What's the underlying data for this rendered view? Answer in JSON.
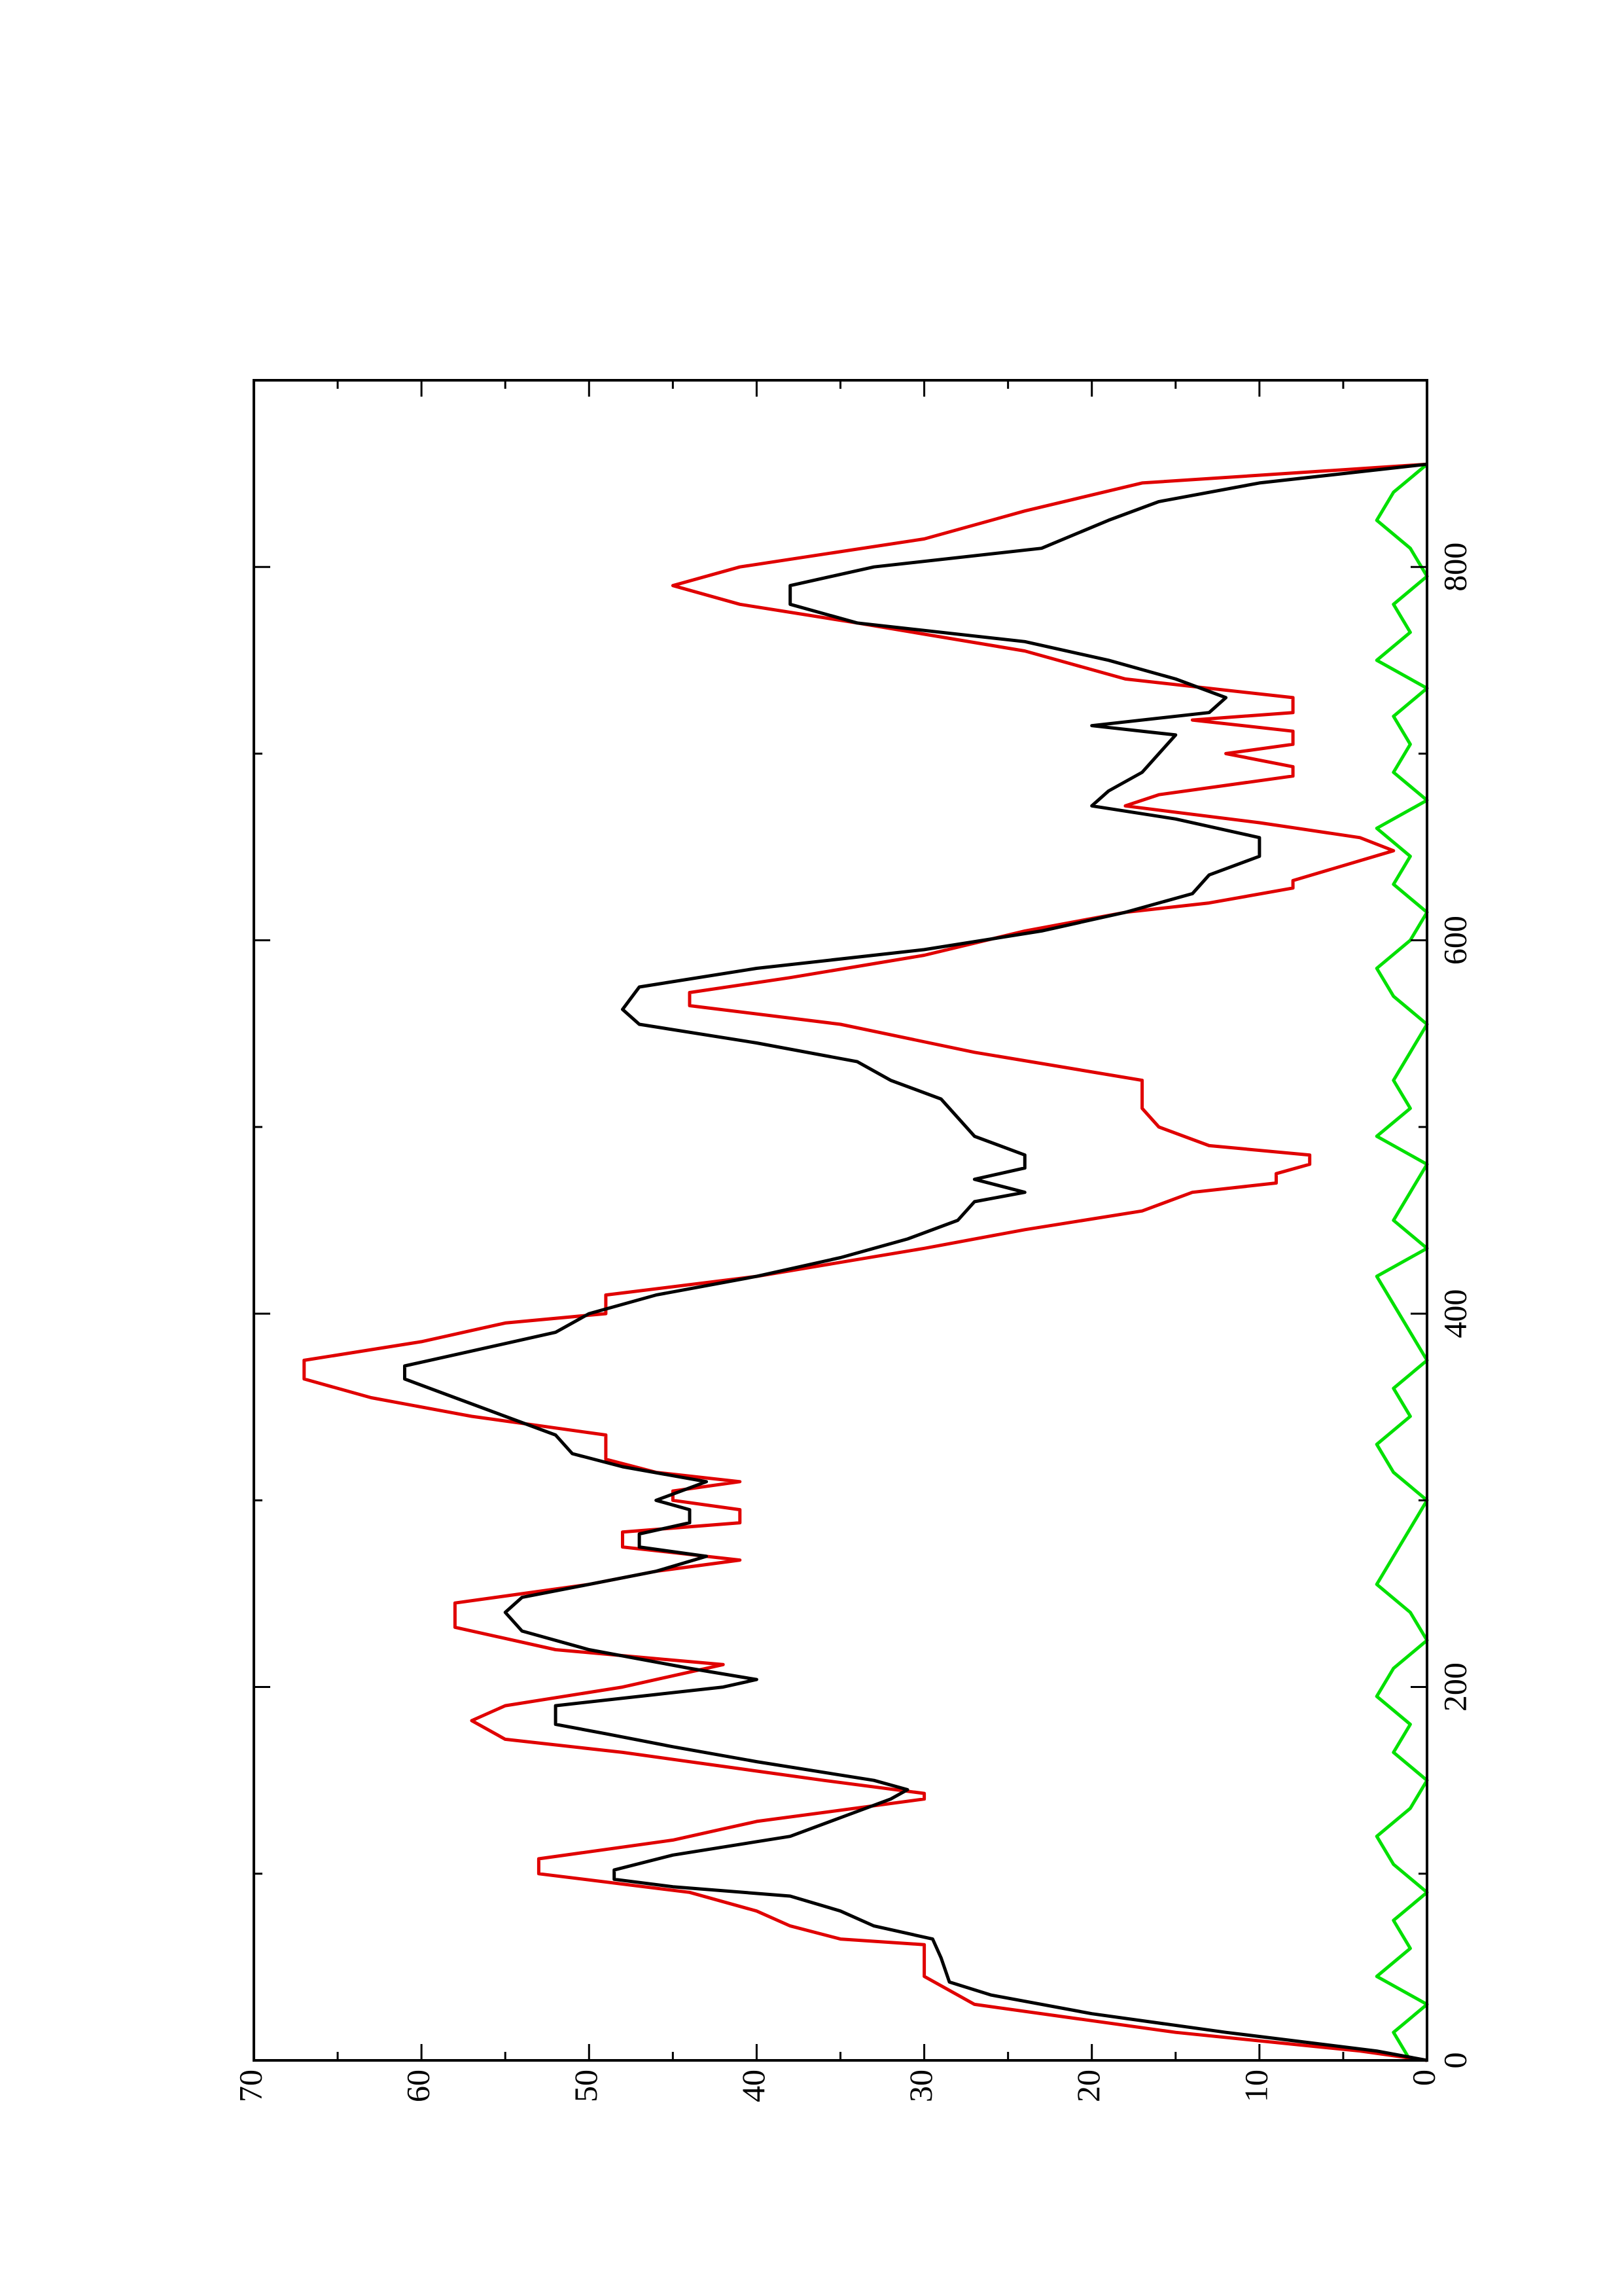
{
  "chart_data": {
    "type": "line",
    "xlim": [
      0,
      900
    ],
    "ylim": [
      0,
      70
    ],
    "xticks": [
      0,
      200,
      400,
      600,
      800
    ],
    "xminor_ticks": [
      100,
      300,
      500,
      700
    ],
    "yticks": [
      0,
      10,
      20,
      30,
      40,
      50,
      60,
      70
    ],
    "yminor_ticks": [
      5,
      15,
      25,
      35,
      45,
      55,
      65
    ],
    "rotated": true,
    "series": [
      {
        "color": "#00e000",
        "x": [
          0,
          15,
          30,
          45,
          60,
          75,
          90,
          105,
          120,
          135,
          150,
          165,
          180,
          195,
          210,
          225,
          240,
          255,
          270,
          285,
          300,
          315,
          330,
          345,
          360,
          375,
          390,
          405,
          420,
          435,
          450,
          465,
          480,
          495,
          510,
          525,
          540,
          555,
          570,
          585,
          600,
          615,
          630,
          645,
          660,
          675,
          690,
          705,
          720,
          735,
          750,
          765,
          780,
          795,
          810,
          825,
          840,
          855
        ],
        "values": [
          1,
          2,
          0,
          3,
          1,
          2,
          0,
          2,
          3,
          1,
          0,
          2,
          1,
          3,
          2,
          0,
          1,
          3,
          2,
          1,
          0,
          2,
          3,
          1,
          2,
          0,
          1,
          2,
          3,
          0,
          2,
          1,
          0,
          3,
          1,
          2,
          1,
          0,
          2,
          3,
          1,
          0,
          2,
          1,
          3,
          0,
          2,
          1,
          2,
          0,
          3,
          1,
          2,
          0,
          1,
          3,
          2,
          0
        ]
      },
      {
        "color": "#e00000",
        "x": [
          0,
          5,
          15,
          30,
          45,
          62,
          65,
          72,
          80,
          90,
          100,
          108,
          118,
          128,
          140,
          143,
          150,
          165,
          172,
          182,
          190,
          200,
          212,
          220,
          232,
          245,
          255,
          262,
          268,
          275,
          283,
          288,
          295,
          300,
          305,
          310,
          315,
          322,
          335,
          340,
          345,
          355,
          365,
          375,
          385,
          395,
          400,
          410,
          420,
          435,
          445,
          455,
          465,
          470,
          475,
          480,
          485,
          490,
          500,
          510,
          525,
          540,
          555,
          565,
          572,
          580,
          592,
          605,
          615,
          620,
          628,
          632,
          640,
          648,
          655,
          663,
          672,
          678,
          688,
          693,
          700,
          705,
          712,
          718,
          722,
          730,
          740,
          755,
          770,
          780,
          790,
          800,
          815,
          830,
          845,
          855
        ],
        "values": [
          0,
          4,
          15,
          27,
          30,
          30,
          35,
          38,
          40,
          44,
          53,
          53,
          45,
          40,
          30,
          30,
          36,
          48,
          55,
          57,
          55,
          48,
          42,
          52,
          58,
          58,
          50,
          46,
          41,
          48,
          48,
          41,
          41,
          45,
          45,
          41,
          46,
          49,
          49,
          53,
          57,
          63,
          67,
          67,
          60,
          55,
          49,
          49,
          40,
          30,
          24,
          17,
          14,
          9,
          9,
          7,
          7,
          13,
          16,
          17,
          17,
          27,
          35,
          44,
          44,
          38,
          30,
          24,
          18,
          13,
          8,
          8,
          5,
          2,
          4,
          10,
          18,
          16,
          8,
          8,
          12,
          8,
          8,
          14,
          8,
          8,
          18,
          24,
          34,
          41,
          45,
          41,
          30,
          24,
          17,
          0
        ]
      },
      {
        "color": "#000000",
        "x": [
          0,
          5,
          15,
          25,
          35,
          42,
          55,
          65,
          72,
          80,
          88,
          93,
          97,
          102,
          110,
          120,
          130,
          140,
          145,
          150,
          160,
          168,
          175,
          180,
          190,
          196,
          200,
          204,
          210,
          220,
          230,
          240,
          248,
          255,
          262,
          270,
          275,
          282,
          288,
          295,
          300,
          310,
          318,
          325,
          335,
          345,
          355,
          365,
          372,
          380,
          390,
          400,
          410,
          420,
          430,
          440,
          450,
          460,
          465,
          472,
          478,
          485,
          495,
          505,
          515,
          525,
          535,
          545,
          555,
          563,
          575,
          585,
          595,
          605,
          615,
          625,
          635,
          645,
          655,
          665,
          672,
          680,
          690,
          700,
          710,
          715,
          722,
          730,
          740,
          750,
          760,
          770,
          780,
          790,
          800,
          810,
          825,
          835,
          845,
          855
        ],
        "values": [
          0,
          3,
          12,
          20,
          26,
          28.5,
          29,
          29.5,
          33,
          35,
          38,
          45,
          48.5,
          48.5,
          45,
          38,
          35,
          32,
          31,
          33,
          40,
          45,
          49,
          52,
          52,
          46,
          42,
          40,
          44,
          50,
          54,
          55,
          54,
          50,
          46,
          43,
          47,
          47,
          44,
          44,
          46,
          43,
          48,
          51,
          52,
          55,
          58,
          61,
          61,
          57,
          52,
          50,
          46,
          40,
          35,
          31,
          28,
          27,
          24,
          27,
          24,
          24,
          27,
          28,
          29,
          32,
          34,
          40,
          47,
          48,
          47,
          40,
          30,
          23,
          18,
          14,
          13,
          10,
          10,
          15,
          20,
          19,
          17,
          16,
          15,
          20,
          13,
          12,
          15,
          19,
          24,
          34,
          38,
          38,
          33,
          23,
          19,
          16,
          10,
          0
        ]
      }
    ]
  }
}
